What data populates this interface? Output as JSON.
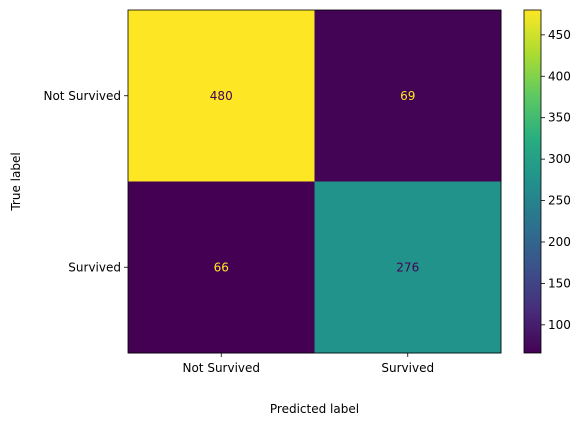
{
  "chart_data": {
    "type": "heatmap",
    "title": "",
    "xlabel": "Predicted label",
    "ylabel": "True label",
    "x_categories": [
      "Not Survived",
      "Survived"
    ],
    "y_categories": [
      "Not Survived",
      "Survived"
    ],
    "values": [
      [
        480,
        69
      ],
      [
        66,
        276
      ]
    ],
    "colormap": "viridis",
    "colorbar": {
      "range": [
        66,
        480
      ],
      "ticks": [
        100,
        150,
        200,
        250,
        300,
        350,
        400,
        450
      ]
    },
    "cell_text_colors": {
      "dark_cell": "#fde725",
      "light_cell": "#440154"
    },
    "grid": false
  }
}
